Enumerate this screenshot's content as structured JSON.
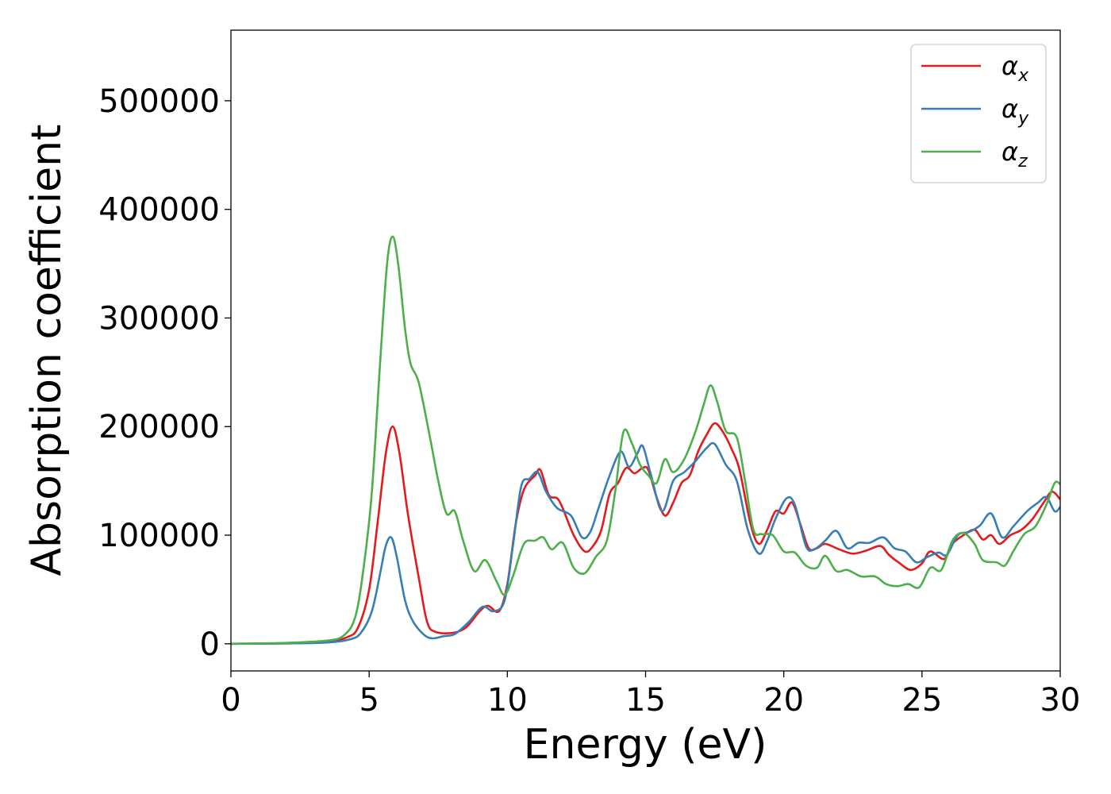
{
  "chart_data": {
    "type": "line",
    "xlabel": "Energy (eV)",
    "ylabel": "Absorption coefficient",
    "xlim": [
      0,
      30
    ],
    "ylim": [
      -25000,
      565000
    ],
    "xticks": [
      0,
      5,
      10,
      15,
      20,
      25,
      30
    ],
    "yticks": [
      0,
      100000,
      200000,
      300000,
      400000,
      500000
    ],
    "grid": false,
    "legend_position": "top-right",
    "series": [
      {
        "name": "α_x",
        "legend_base": "α",
        "legend_sub": "x",
        "color": "#e41a1c",
        "points": [
          [
            0,
            0
          ],
          [
            2,
            500
          ],
          [
            3.5,
            2000
          ],
          [
            4.2,
            6000
          ],
          [
            4.6,
            15000
          ],
          [
            5.0,
            50000
          ],
          [
            5.3,
            110000
          ],
          [
            5.6,
            175000
          ],
          [
            5.85,
            200000
          ],
          [
            6.1,
            175000
          ],
          [
            6.4,
            120000
          ],
          [
            6.8,
            60000
          ],
          [
            7.1,
            20000
          ],
          [
            7.4,
            11000
          ],
          [
            8.0,
            10000
          ],
          [
            8.5,
            15000
          ],
          [
            9.0,
            30000
          ],
          [
            9.3,
            35000
          ],
          [
            9.7,
            30000
          ],
          [
            10.0,
            55000
          ],
          [
            10.3,
            110000
          ],
          [
            10.6,
            142000
          ],
          [
            11.0,
            155000
          ],
          [
            11.2,
            160000
          ],
          [
            11.5,
            137000
          ],
          [
            11.8,
            134000
          ],
          [
            12.0,
            125000
          ],
          [
            12.4,
            100000
          ],
          [
            12.8,
            85000
          ],
          [
            13.1,
            90000
          ],
          [
            13.4,
            105000
          ],
          [
            13.7,
            138000
          ],
          [
            14.0,
            148000
          ],
          [
            14.3,
            162000
          ],
          [
            14.6,
            157000
          ],
          [
            14.9,
            162000
          ],
          [
            15.1,
            160000
          ],
          [
            15.4,
            135000
          ],
          [
            15.7,
            118000
          ],
          [
            16.0,
            130000
          ],
          [
            16.3,
            148000
          ],
          [
            16.6,
            155000
          ],
          [
            16.9,
            177000
          ],
          [
            17.2,
            192000
          ],
          [
            17.5,
            203000
          ],
          [
            17.8,
            195000
          ],
          [
            18.1,
            180000
          ],
          [
            18.4,
            160000
          ],
          [
            18.8,
            110000
          ],
          [
            19.1,
            92000
          ],
          [
            19.4,
            105000
          ],
          [
            19.7,
            122000
          ],
          [
            20.0,
            120000
          ],
          [
            20.3,
            130000
          ],
          [
            20.6,
            110000
          ],
          [
            20.9,
            88000
          ],
          [
            21.2,
            88000
          ],
          [
            21.5,
            92000
          ],
          [
            22.0,
            87000
          ],
          [
            22.5,
            83000
          ],
          [
            23.0,
            86000
          ],
          [
            23.5,
            90000
          ],
          [
            23.8,
            82000
          ],
          [
            24.2,
            74000
          ],
          [
            24.6,
            68000
          ],
          [
            25.0,
            74000
          ],
          [
            25.3,
            85000
          ],
          [
            25.8,
            78000
          ],
          [
            26.1,
            92000
          ],
          [
            26.5,
            100000
          ],
          [
            26.9,
            105000
          ],
          [
            27.2,
            96000
          ],
          [
            27.5,
            100000
          ],
          [
            27.8,
            92000
          ],
          [
            28.2,
            100000
          ],
          [
            28.6,
            105000
          ],
          [
            29.0,
            115000
          ],
          [
            29.4,
            130000
          ],
          [
            29.7,
            140000
          ],
          [
            30.0,
            133000
          ]
        ]
      },
      {
        "name": "α_y",
        "legend_base": "α",
        "legend_sub": "y",
        "color": "#377eb8",
        "points": [
          [
            0,
            0
          ],
          [
            2,
            300
          ],
          [
            3.5,
            1200
          ],
          [
            4.3,
            4000
          ],
          [
            4.7,
            10000
          ],
          [
            5.1,
            30000
          ],
          [
            5.4,
            65000
          ],
          [
            5.6,
            90000
          ],
          [
            5.8,
            98000
          ],
          [
            6.0,
            80000
          ],
          [
            6.3,
            40000
          ],
          [
            6.6,
            20000
          ],
          [
            7.0,
            8000
          ],
          [
            7.3,
            5000
          ],
          [
            7.7,
            7000
          ],
          [
            8.1,
            9000
          ],
          [
            8.6,
            20000
          ],
          [
            9.1,
            34000
          ],
          [
            9.5,
            30000
          ],
          [
            9.9,
            40000
          ],
          [
            10.2,
            90000
          ],
          [
            10.5,
            145000
          ],
          [
            10.8,
            152000
          ],
          [
            11.1,
            158000
          ],
          [
            11.4,
            140000
          ],
          [
            11.8,
            125000
          ],
          [
            12.3,
            118000
          ],
          [
            12.7,
            98000
          ],
          [
            13.0,
            103000
          ],
          [
            13.3,
            125000
          ],
          [
            13.7,
            155000
          ],
          [
            14.1,
            177000
          ],
          [
            14.4,
            163000
          ],
          [
            14.7,
            175000
          ],
          [
            14.9,
            182000
          ],
          [
            15.2,
            155000
          ],
          [
            15.6,
            122000
          ],
          [
            16.0,
            150000
          ],
          [
            16.4,
            158000
          ],
          [
            16.8,
            168000
          ],
          [
            17.2,
            180000
          ],
          [
            17.5,
            184000
          ],
          [
            17.9,
            165000
          ],
          [
            18.3,
            150000
          ],
          [
            18.7,
            105000
          ],
          [
            19.1,
            83000
          ],
          [
            19.4,
            95000
          ],
          [
            19.7,
            115000
          ],
          [
            20.1,
            134000
          ],
          [
            20.4,
            128000
          ],
          [
            20.8,
            90000
          ],
          [
            21.1,
            87000
          ],
          [
            21.5,
            95000
          ],
          [
            21.9,
            104000
          ],
          [
            22.3,
            88000
          ],
          [
            22.7,
            93000
          ],
          [
            23.1,
            93000
          ],
          [
            23.6,
            98000
          ],
          [
            24.0,
            88000
          ],
          [
            24.4,
            85000
          ],
          [
            24.8,
            75000
          ],
          [
            25.2,
            80000
          ],
          [
            25.6,
            84000
          ],
          [
            25.9,
            82000
          ],
          [
            26.3,
            100000
          ],
          [
            26.7,
            103000
          ],
          [
            27.1,
            109000
          ],
          [
            27.5,
            120000
          ],
          [
            27.9,
            98000
          ],
          [
            28.3,
            108000
          ],
          [
            28.8,
            122000
          ],
          [
            29.2,
            130000
          ],
          [
            29.5,
            135000
          ],
          [
            29.8,
            122000
          ],
          [
            30.0,
            126000
          ]
        ]
      },
      {
        "name": "α_z",
        "legend_base": "α",
        "legend_sub": "z",
        "color": "#4daf4a",
        "points": [
          [
            0,
            0
          ],
          [
            2,
            800
          ],
          [
            3.5,
            3000
          ],
          [
            4.1,
            8000
          ],
          [
            4.5,
            25000
          ],
          [
            4.8,
            70000
          ],
          [
            5.1,
            140000
          ],
          [
            5.4,
            260000
          ],
          [
            5.65,
            350000
          ],
          [
            5.85,
            375000
          ],
          [
            6.05,
            350000
          ],
          [
            6.3,
            290000
          ],
          [
            6.5,
            258000
          ],
          [
            6.8,
            240000
          ],
          [
            7.2,
            190000
          ],
          [
            7.5,
            150000
          ],
          [
            7.8,
            120000
          ],
          [
            8.1,
            122000
          ],
          [
            8.4,
            95000
          ],
          [
            8.8,
            67000
          ],
          [
            9.2,
            77000
          ],
          [
            9.6,
            58000
          ],
          [
            9.9,
            45000
          ],
          [
            10.2,
            62000
          ],
          [
            10.6,
            92000
          ],
          [
            11.0,
            95000
          ],
          [
            11.3,
            98000
          ],
          [
            11.6,
            87000
          ],
          [
            12.0,
            93000
          ],
          [
            12.4,
            70000
          ],
          [
            12.8,
            65000
          ],
          [
            13.2,
            80000
          ],
          [
            13.6,
            95000
          ],
          [
            13.9,
            140000
          ],
          [
            14.2,
            195000
          ],
          [
            14.5,
            185000
          ],
          [
            14.8,
            165000
          ],
          [
            15.1,
            155000
          ],
          [
            15.4,
            148000
          ],
          [
            15.7,
            170000
          ],
          [
            16.0,
            158000
          ],
          [
            16.4,
            170000
          ],
          [
            16.8,
            195000
          ],
          [
            17.1,
            220000
          ],
          [
            17.35,
            238000
          ],
          [
            17.6,
            222000
          ],
          [
            17.9,
            196000
          ],
          [
            18.3,
            190000
          ],
          [
            18.6,
            150000
          ],
          [
            18.9,
            105000
          ],
          [
            19.2,
            101000
          ],
          [
            19.6,
            100000
          ],
          [
            20.0,
            85000
          ],
          [
            20.4,
            84000
          ],
          [
            20.8,
            72000
          ],
          [
            21.2,
            70000
          ],
          [
            21.5,
            81000
          ],
          [
            21.9,
            67000
          ],
          [
            22.3,
            68000
          ],
          [
            22.8,
            62000
          ],
          [
            23.3,
            62000
          ],
          [
            23.7,
            55000
          ],
          [
            24.1,
            53000
          ],
          [
            24.5,
            55000
          ],
          [
            24.9,
            52000
          ],
          [
            25.3,
            70000
          ],
          [
            25.7,
            68000
          ],
          [
            26.1,
            95000
          ],
          [
            26.5,
            102000
          ],
          [
            26.9,
            92000
          ],
          [
            27.2,
            77000
          ],
          [
            27.7,
            75000
          ],
          [
            28.0,
            72000
          ],
          [
            28.3,
            85000
          ],
          [
            28.7,
            101000
          ],
          [
            29.1,
            108000
          ],
          [
            29.5,
            128000
          ],
          [
            29.8,
            148000
          ],
          [
            30.0,
            147000
          ]
        ]
      }
    ]
  }
}
